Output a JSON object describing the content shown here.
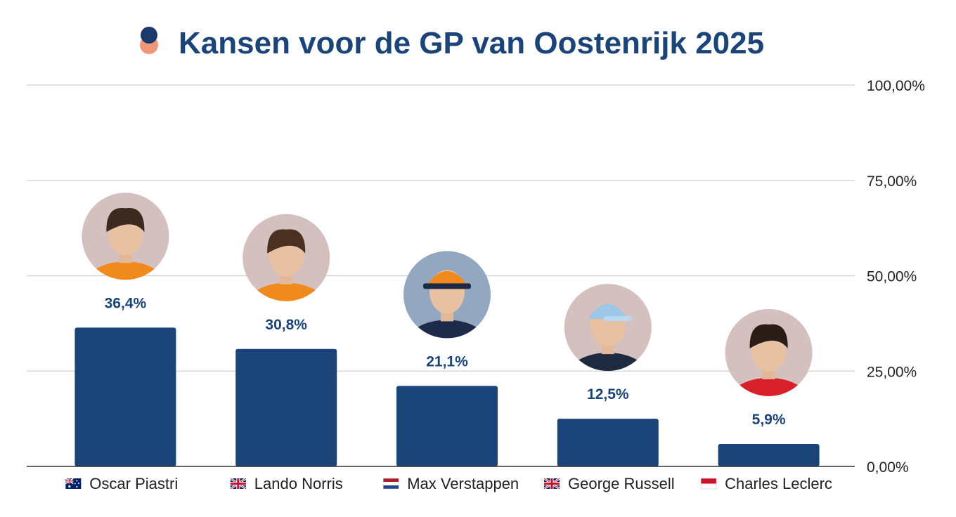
{
  "chart_data": {
    "type": "bar",
    "title": "Kansen voor de GP van Oostenrijk 2025",
    "categories": [
      "Oscar Piastri",
      "Lando Norris",
      "Max Verstappen",
      "George Russell",
      "Charles Leclerc"
    ],
    "values": [
      36.4,
      30.8,
      21.1,
      12.5,
      5.9
    ],
    "value_labels": [
      "36,4%",
      "30,8%",
      "21,1%",
      "12,5%",
      "5,9%"
    ],
    "ylim": [
      0,
      100
    ],
    "yticks": [
      0,
      25,
      50,
      75,
      100
    ],
    "ytick_labels": [
      "0,00%",
      "25,00%",
      "50,00%",
      "75,00%",
      "100,00%"
    ],
    "y_axis_side": "right",
    "grid": true,
    "xlabel": "",
    "ylabel": "",
    "flags": [
      "australia-flag-icon",
      "uk-flag-icon",
      "netherlands-flag-icon",
      "uk-flag-icon",
      "monaco-flag-icon"
    ],
    "avatars": [
      "oscar-piastri-avatar",
      "lando-norris-avatar",
      "max-verstappen-avatar",
      "george-russell-avatar",
      "charles-leclerc-avatar"
    ],
    "colors": {
      "bar": "#1b4478",
      "title": "#1b4478",
      "grid": "#d6d6d6",
      "avatar_bg": "#d5c0c0",
      "avatar_bg_alt": "#93a8c0"
    }
  }
}
